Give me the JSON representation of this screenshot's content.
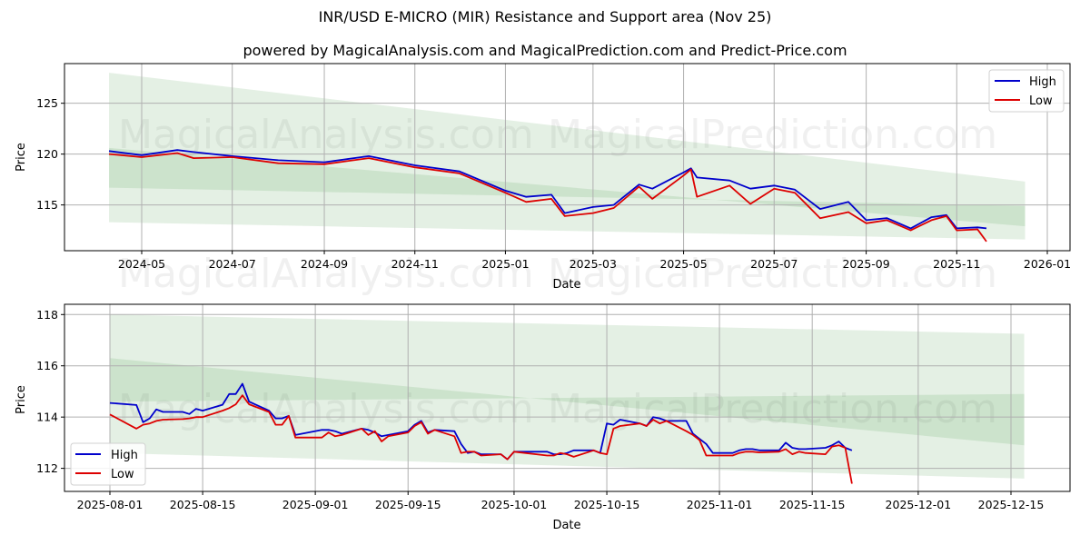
{
  "title": "INR/USD E-MICRO (MIR) Resistance and Support area (Nov 25)",
  "subtitle": "powered by MagicalAnalysis.com and MagicalPrediction.com and Predict-Price.com",
  "watermarks": [
    "MagicalAnalysis.com",
    "MagicalPrediction.com"
  ],
  "colors": {
    "high": "#0000cc",
    "low": "#dd0000",
    "band": "#2e8b2e",
    "grid": "#b0b0b0"
  },
  "chart_data": [
    {
      "type": "line",
      "title": "INR/USD E-MICRO (MIR) Resistance and Support area (Nov 25)",
      "xlabel": "Date",
      "ylabel": "Price",
      "x_ticks": [
        "2024-05",
        "2024-07",
        "2024-09",
        "2024-11",
        "2025-01",
        "2025-03",
        "2025-05",
        "2025-07",
        "2025-09",
        "2025-11",
        "2026-01"
      ],
      "y_ticks": [
        115,
        120,
        125
      ],
      "ylim": [
        110.5,
        128.9
      ],
      "grid": true,
      "legend": {
        "position": "upper right",
        "entries": [
          "High",
          "Low"
        ]
      },
      "x": [
        "2024-04-09",
        "2024-05-01",
        "2024-05-25",
        "2024-06-05",
        "2024-07-01",
        "2024-08-01",
        "2024-09-01",
        "2024-10-01",
        "2024-11-01",
        "2024-12-01",
        "2025-01-01",
        "2025-01-15",
        "2025-02-01",
        "2025-02-10",
        "2025-03-01",
        "2025-03-15",
        "2025-04-01",
        "2025-04-10",
        "2025-05-01",
        "2025-05-06",
        "2025-05-10",
        "2025-06-01",
        "2025-06-15",
        "2025-07-01",
        "2025-07-15",
        "2025-08-01",
        "2025-08-20",
        "2025-09-01",
        "2025-09-15",
        "2025-10-01",
        "2025-10-15",
        "2025-10-25",
        "2025-11-01",
        "2025-11-15",
        "2025-11-21"
      ],
      "series": [
        {
          "name": "High",
          "values": [
            120.3,
            119.9,
            120.4,
            120.2,
            119.8,
            119.4,
            119.2,
            119.8,
            118.9,
            118.3,
            116.4,
            115.8,
            116.0,
            114.2,
            114.8,
            115.0,
            117.0,
            116.6,
            118.2,
            118.6,
            117.7,
            117.4,
            116.6,
            116.9,
            116.5,
            114.6,
            115.3,
            113.5,
            113.7,
            112.7,
            113.8,
            114.0,
            112.7,
            112.8,
            112.7
          ],
          "color": "#0000cc"
        },
        {
          "name": "Low",
          "values": [
            120.0,
            119.7,
            120.1,
            119.6,
            119.7,
            119.1,
            119.0,
            119.6,
            118.7,
            118.1,
            116.2,
            115.3,
            115.6,
            113.9,
            114.2,
            114.7,
            116.8,
            115.6,
            117.9,
            118.5,
            115.8,
            116.9,
            115.1,
            116.6,
            116.2,
            113.7,
            114.3,
            113.2,
            113.5,
            112.5,
            113.5,
            113.9,
            112.5,
            112.6,
            111.4
          ],
          "color": "#dd0000"
        }
      ],
      "bands": [
        {
          "name": "outer",
          "x": [
            "2024-04-09",
            "2025-12-17"
          ],
          "upper": [
            128.0,
            117.3
          ],
          "lower": [
            113.3,
            111.6
          ]
        },
        {
          "name": "inner",
          "x": [
            "2024-04-09",
            "2025-12-17"
          ],
          "upper": [
            120.6,
            112.9
          ],
          "lower": [
            116.7,
            114.9
          ]
        }
      ]
    },
    {
      "type": "line",
      "title": "",
      "xlabel": "Date",
      "ylabel": "Price",
      "x_ticks": [
        "2025-08-01",
        "2025-08-15",
        "2025-09-01",
        "2025-09-15",
        "2025-10-01",
        "2025-10-15",
        "2025-11-01",
        "2025-11-15",
        "2025-12-01",
        "2025-12-15"
      ],
      "y_ticks": [
        112,
        114,
        116,
        118
      ],
      "ylim": [
        111.1,
        118.4
      ],
      "grid": true,
      "legend": {
        "position": "lower left",
        "entries": [
          "High",
          "Low"
        ]
      },
      "x": [
        "2025-08-01",
        "2025-08-05",
        "2025-08-06",
        "2025-08-07",
        "2025-08-08",
        "2025-08-09",
        "2025-08-12",
        "2025-08-13",
        "2025-08-14",
        "2025-08-15",
        "2025-08-18",
        "2025-08-19",
        "2025-08-20",
        "2025-08-21",
        "2025-08-22",
        "2025-08-25",
        "2025-08-26",
        "2025-08-27",
        "2025-08-28",
        "2025-08-29",
        "2025-09-02",
        "2025-09-03",
        "2025-09-04",
        "2025-09-05",
        "2025-09-08",
        "2025-09-09",
        "2025-09-10",
        "2025-09-11",
        "2025-09-12",
        "2025-09-15",
        "2025-09-16",
        "2025-09-17",
        "2025-09-18",
        "2025-09-19",
        "2025-09-22",
        "2025-09-23",
        "2025-09-24",
        "2025-09-25",
        "2025-09-26",
        "2025-09-29",
        "2025-09-30",
        "2025-10-01",
        "2025-10-06",
        "2025-10-07",
        "2025-10-08",
        "2025-10-09",
        "2025-10-10",
        "2025-10-13",
        "2025-10-14",
        "2025-10-15",
        "2025-10-16",
        "2025-10-17",
        "2025-10-20",
        "2025-10-21",
        "2025-10-22",
        "2025-10-23",
        "2025-10-24",
        "2025-10-27",
        "2025-10-28",
        "2025-10-29",
        "2025-10-30",
        "2025-10-31",
        "2025-11-03",
        "2025-11-04",
        "2025-11-05",
        "2025-11-06",
        "2025-11-07",
        "2025-11-10",
        "2025-11-11",
        "2025-11-12",
        "2025-11-13",
        "2025-11-14",
        "2025-11-17",
        "2025-11-18",
        "2025-11-19",
        "2025-11-20",
        "2025-11-21"
      ],
      "series": [
        {
          "name": "High",
          "values": [
            114.55,
            114.47,
            113.8,
            113.95,
            114.3,
            114.2,
            114.2,
            114.12,
            114.32,
            114.25,
            114.48,
            114.9,
            114.9,
            115.3,
            114.6,
            114.25,
            113.95,
            113.95,
            114.05,
            113.3,
            113.5,
            113.5,
            113.45,
            113.35,
            113.55,
            113.5,
            113.4,
            113.25,
            113.3,
            113.45,
            113.7,
            113.85,
            113.4,
            113.5,
            113.45,
            112.95,
            112.6,
            112.65,
            112.55,
            112.55,
            112.35,
            112.65,
            112.65,
            112.55,
            112.55,
            112.6,
            112.7,
            112.7,
            112.6,
            113.75,
            113.7,
            113.9,
            113.75,
            113.65,
            114.0,
            113.95,
            113.85,
            113.85,
            113.35,
            113.15,
            112.95,
            112.6,
            112.6,
            112.7,
            112.75,
            112.75,
            112.7,
            112.7,
            113.0,
            112.8,
            112.75,
            112.75,
            112.8,
            112.9,
            113.05,
            112.8,
            112.7
          ],
          "color": "#0000cc"
        },
        {
          "name": "Low",
          "values": [
            114.1,
            113.55,
            113.7,
            113.75,
            113.85,
            113.9,
            113.92,
            113.95,
            114.0,
            114.0,
            114.25,
            114.35,
            114.5,
            114.85,
            114.5,
            114.2,
            113.7,
            113.7,
            114.05,
            113.2,
            113.2,
            113.4,
            113.25,
            113.3,
            113.55,
            113.3,
            113.45,
            113.05,
            113.25,
            113.4,
            113.65,
            113.8,
            113.35,
            113.5,
            113.25,
            112.6,
            112.65,
            112.65,
            112.5,
            112.55,
            112.35,
            112.65,
            112.5,
            112.5,
            112.6,
            112.55,
            112.45,
            112.7,
            112.6,
            112.55,
            113.55,
            113.65,
            113.75,
            113.65,
            113.9,
            113.75,
            113.85,
            113.45,
            113.3,
            113.1,
            112.5,
            112.5,
            112.5,
            112.6,
            112.65,
            112.65,
            112.62,
            112.65,
            112.75,
            112.55,
            112.65,
            112.6,
            112.55,
            112.85,
            112.9,
            112.8,
            111.4
          ],
          "color": "#dd0000"
        }
      ],
      "bands": [
        {
          "name": "outer",
          "x": [
            "2025-08-01",
            "2025-12-17"
          ],
          "upper": [
            118.0,
            117.25
          ],
          "lower": [
            112.6,
            111.6
          ]
        },
        {
          "name": "inner",
          "x": [
            "2025-08-01",
            "2025-12-17"
          ],
          "upper": [
            116.3,
            112.9
          ],
          "lower": [
            114.6,
            114.9
          ]
        }
      ]
    }
  ],
  "top_chart": {
    "ylabel": "Price",
    "xlabel": "Date",
    "legend": {
      "high": "High",
      "low": "Low"
    },
    "x_ticks": [
      "2024-05",
      "2024-07",
      "2024-09",
      "2024-11",
      "2025-01",
      "2025-03",
      "2025-05",
      "2025-07",
      "2025-09",
      "2025-11",
      "2026-01"
    ],
    "y_ticks": [
      "115",
      "120",
      "125"
    ]
  },
  "bottom_chart": {
    "ylabel": "Price",
    "xlabel": "Date",
    "legend": {
      "high": "High",
      "low": "Low"
    },
    "x_ticks": [
      "2025-08-01",
      "2025-08-15",
      "2025-09-01",
      "2025-09-15",
      "2025-10-01",
      "2025-10-15",
      "2025-11-01",
      "2025-11-15",
      "2025-12-01",
      "2025-12-15"
    ],
    "y_ticks": [
      "112",
      "114",
      "116",
      "118"
    ]
  }
}
